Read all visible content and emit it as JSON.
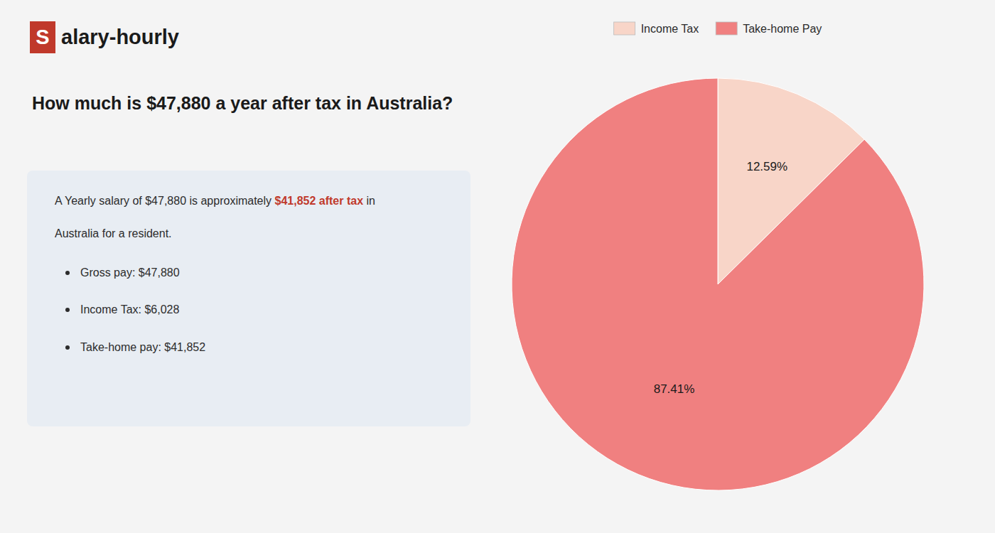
{
  "chart_data": {
    "type": "pie",
    "title": "How much is $47,880 a year after tax in Australia?",
    "annotations": [
      "S",
      "alary-hourly",
      "A Yearly salary of $47,880 is approximately ",
      "$41,852 after tax",
      " in",
      "Australia for a resident.",
      "Gross pay: $47,880",
      "Income Tax: $6,028",
      "Take-home pay: $41,852"
    ],
    "categories": [
      "Income Tax",
      "Take-home Pay"
    ],
    "values": [
      12.59,
      87.41
    ],
    "value_labels": [
      "12.59%",
      "87.41%"
    ],
    "colors": [
      "#f8d5c8",
      "#f08080"
    ],
    "data_labels": true,
    "legend": "top"
  }
}
